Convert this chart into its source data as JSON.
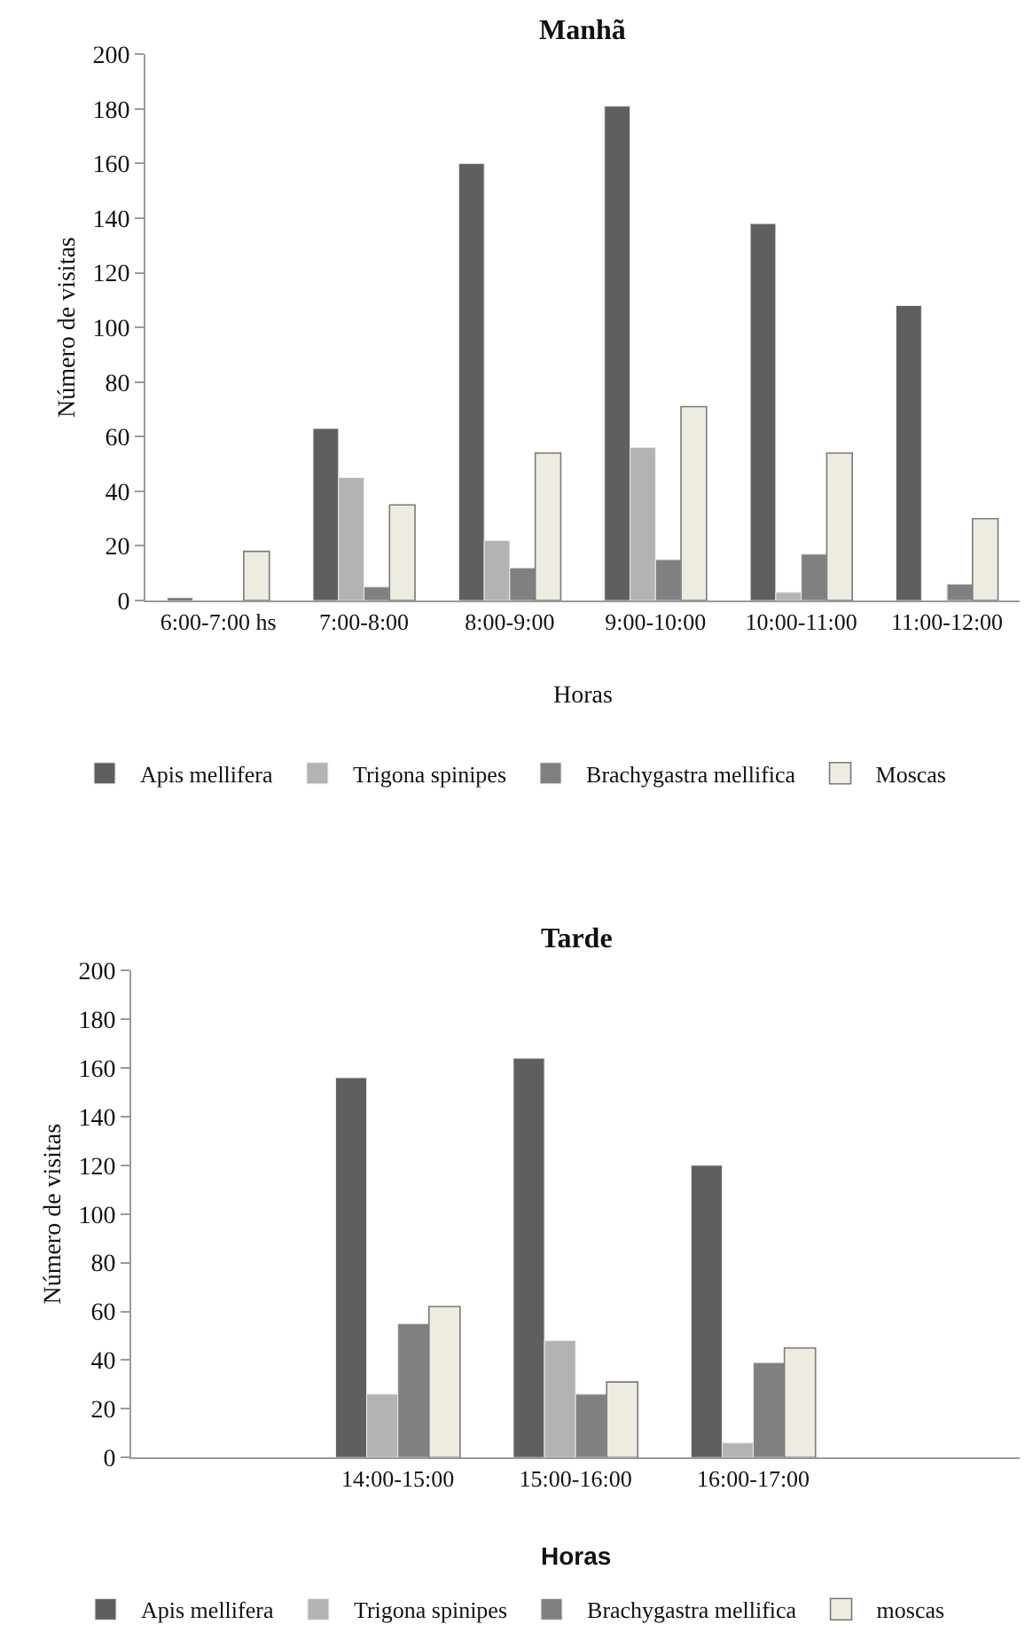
{
  "chart_data": [
    {
      "type": "bar",
      "title": "Manhã",
      "xlabel": "Horas",
      "ylabel": "Número de visitas",
      "categories": [
        "6:00-7:00 hs",
        "7:00-8:00",
        "8:00-9:00",
        "9:00-10:00",
        "10:00-11:00",
        "11:00-12:00"
      ],
      "series": [
        {
          "name": "Apis mellifera",
          "color": "#5f5f5f",
          "values": [
            1,
            63,
            160,
            181,
            138,
            108
          ]
        },
        {
          "name": "Trigona spinipes",
          "color": "#b3b3b3",
          "values": [
            null,
            45,
            22,
            56,
            3,
            null
          ]
        },
        {
          "name": "Brachygastra mellifica",
          "color": "#808080",
          "values": [
            null,
            5,
            12,
            15,
            17,
            6
          ]
        },
        {
          "name": "Moscas",
          "color": "#eeebe0",
          "values": [
            18,
            35,
            54,
            71,
            54,
            30
          ]
        }
      ],
      "ylim": [
        0,
        200
      ],
      "yticks": [
        0,
        20,
        40,
        60,
        80,
        100,
        120,
        140,
        160,
        180,
        200
      ],
      "legend": "bottom"
    },
    {
      "type": "bar",
      "title": "Tarde",
      "xlabel": "Horas",
      "ylabel": "Número de visitas",
      "categories": [
        null,
        "14:00-15:00",
        "15:00-16:00",
        "16:00-17:00",
        null
      ],
      "series": [
        {
          "name": "Apis mellifera",
          "color": "#5f5f5f",
          "values": [
            null,
            156,
            164,
            120,
            null
          ]
        },
        {
          "name": "Trigona spinipes",
          "color": "#b3b3b3",
          "values": [
            null,
            26,
            48,
            6,
            null
          ]
        },
        {
          "name": "Brachygastra mellifica",
          "color": "#808080",
          "values": [
            null,
            55,
            26,
            39,
            null
          ]
        },
        {
          "name": "moscas",
          "color": "#eeebe0",
          "values": [
            null,
            62,
            31,
            45,
            null
          ]
        }
      ],
      "ylim": [
        0,
        200
      ],
      "yticks": [
        0,
        20,
        40,
        60,
        80,
        100,
        120,
        140,
        160,
        180,
        200
      ],
      "legend": "bottom"
    }
  ]
}
